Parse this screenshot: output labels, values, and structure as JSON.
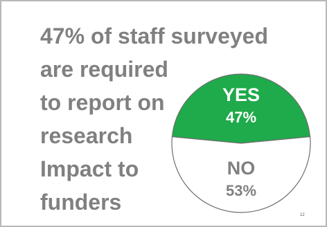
{
  "slide": {
    "headline_lines": [
      "47% of staff surveyed",
      "are required",
      "to report on",
      "research",
      "Impact to",
      "funders"
    ],
    "page_number": "12",
    "text_color": "#808080"
  },
  "chart_data": {
    "type": "pie",
    "slices": [
      {
        "label": "YES",
        "value": 47,
        "value_label": "47%",
        "color": "#1faa4b",
        "text_color": "#ffffff"
      },
      {
        "label": "NO",
        "value": 53,
        "value_label": "53%",
        "color": "#ffffff",
        "text_color": "#808080"
      }
    ],
    "legend": "none"
  }
}
